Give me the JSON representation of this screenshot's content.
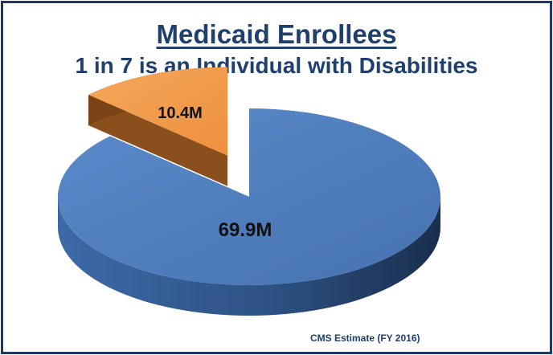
{
  "chart_data": {
    "type": "pie",
    "title": "Medicaid Enrollees",
    "subtitle": "1 in 7 is an Individual with Disabilities",
    "slices": [
      {
        "label": "69.9M",
        "value": 69.9,
        "color": "#4f7fbe"
      },
      {
        "label": "10.4M",
        "value": 10.4,
        "color": "#f29a49"
      }
    ],
    "exploded_slice": 1,
    "three_d": true,
    "source": "CMS Estimate (FY 2016)"
  }
}
